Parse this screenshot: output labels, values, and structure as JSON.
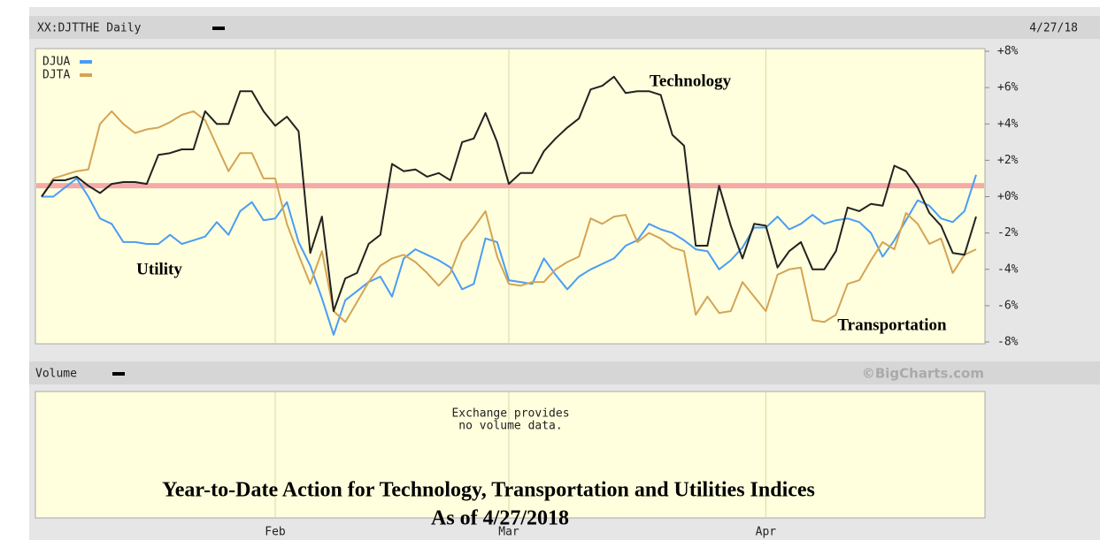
{
  "chart_data": {
    "type": "line",
    "title": "XX:DJTTHE Daily",
    "date_label": "4/27/18",
    "categories": [
      null,
      null,
      null,
      null,
      null,
      null,
      null,
      null,
      null,
      null,
      null,
      null,
      null,
      null,
      null,
      null,
      null,
      null,
      null,
      null,
      "Feb",
      null,
      null,
      null,
      null,
      null,
      null,
      null,
      null,
      null,
      null,
      null,
      null,
      null,
      null,
      null,
      null,
      null,
      null,
      null,
      "Mar",
      null,
      null,
      null,
      null,
      null,
      null,
      null,
      null,
      null,
      null,
      null,
      null,
      null,
      null,
      null,
      null,
      null,
      null,
      null,
      null,
      null,
      "Apr",
      null,
      null,
      null,
      null,
      null,
      null,
      null,
      null,
      null,
      null,
      null,
      null,
      null,
      null,
      null,
      null,
      null,
      null
    ],
    "series": [
      {
        "name": "XX:DJTTHE Daily",
        "color": "#222222",
        "values": [
          0,
          0.9,
          0.9,
          1.1,
          0.6,
          0.2,
          0.7,
          0.8,
          0.8,
          0.7,
          2.3,
          2.4,
          2.6,
          2.6,
          4.7,
          4.0,
          4.0,
          5.8,
          5.8,
          4.7,
          3.9,
          4.4,
          3.6,
          -3.1,
          -1.1,
          -6.3,
          -4.5,
          -4.2,
          -2.6,
          -2.1,
          1.8,
          1.4,
          1.5,
          1.1,
          1.3,
          0.9,
          3.0,
          3.2,
          4.6,
          3.0,
          0.7,
          1.3,
          1.3,
          2.5,
          3.2,
          3.8,
          4.3,
          5.9,
          6.1,
          6.6,
          5.7,
          5.8,
          5.8,
          5.6,
          3.4,
          2.8,
          -2.7,
          -2.7,
          0.6,
          -1.6,
          -3.4,
          -1.5,
          -1.6,
          -3.9,
          -3.0,
          -2.5,
          -4.0,
          -4.0,
          -3.0,
          -0.6,
          -0.8,
          -0.4,
          -0.5,
          1.7,
          1.4,
          0.5,
          -0.9,
          -1.6,
          -3.1,
          -3.2,
          -1.1
        ]
      },
      {
        "name": "DJUA",
        "color": "#4a9cf5",
        "values": [
          0,
          0,
          0.5,
          1.0,
          0,
          -1.2,
          -1.5,
          -2.5,
          -2.5,
          -2.6,
          -2.6,
          -2.1,
          -2.6,
          -2.4,
          -2.2,
          -1.4,
          -2.1,
          -0.8,
          -0.3,
          -1.3,
          -1.2,
          -0.3,
          -2.5,
          -3.8,
          -5.6,
          -7.6,
          -5.7,
          -5.2,
          -4.7,
          -4.4,
          -5.5,
          -3.4,
          -2.9,
          -3.2,
          -3.5,
          -3.9,
          -5.1,
          -4.8,
          -2.3,
          -2.5,
          -4.6,
          -4.7,
          -4.8,
          -3.4,
          -4.3,
          -5.1,
          -4.4,
          -4.0,
          -3.7,
          -3.4,
          -2.7,
          -2.4,
          -1.5,
          -1.8,
          -2.0,
          -2.4,
          -2.9,
          -3.0,
          -4.0,
          -3.5,
          -2.8,
          -1.7,
          -1.7,
          -1.1,
          -1.8,
          -1.5,
          -1.0,
          -1.5,
          -1.3,
          -1.2,
          -1.4,
          -2.0,
          -3.3,
          -2.4,
          -1.3,
          -0.2,
          -0.5,
          -1.2,
          -1.4,
          -0.8,
          1.2
        ]
      },
      {
        "name": "DJTA",
        "color": "#d4a455",
        "values": [
          0,
          1.0,
          1.2,
          1.4,
          1.5,
          4.0,
          4.7,
          4.0,
          3.5,
          3.7,
          3.8,
          4.1,
          4.5,
          4.7,
          4.2,
          2.8,
          1.4,
          2.4,
          2.4,
          1.0,
          1.0,
          -1.5,
          -3.2,
          -4.8,
          -3.0,
          -6.3,
          -6.9,
          -5.8,
          -4.7,
          -3.8,
          -3.4,
          -3.2,
          -3.6,
          -4.2,
          -4.9,
          -4.2,
          -2.5,
          -1.7,
          -0.8,
          -3.3,
          -4.8,
          -4.9,
          -4.7,
          -4.7,
          -4.0,
          -3.6,
          -3.3,
          -1.2,
          -1.5,
          -1.1,
          -1.0,
          -2.5,
          -2.0,
          -2.3,
          -2.8,
          -3.0,
          -6.5,
          -5.5,
          -6.4,
          -6.3,
          -4.7,
          -5.5,
          -6.3,
          -4.3,
          -4.0,
          -3.9,
          -6.8,
          -6.9,
          -6.5,
          -4.8,
          -4.6,
          -3.5,
          -2.5,
          -2.9,
          -0.9,
          -1.5,
          -2.6,
          -2.3,
          -4.2,
          -3.2,
          -2.9
        ]
      }
    ],
    "ylim": [
      -8,
      8
    ],
    "yticks": [
      {
        "value": 8,
        "label": "+8%"
      },
      {
        "value": 6,
        "label": "+6%"
      },
      {
        "value": 4,
        "label": "+4%"
      },
      {
        "value": 2,
        "label": "+2%"
      },
      {
        "value": 0,
        "label": "+0%"
      },
      {
        "value": -2,
        "label": "-2%"
      },
      {
        "value": -4,
        "label": "-4%"
      },
      {
        "value": -6,
        "label": "-6%"
      },
      {
        "value": -8,
        "label": "-8%"
      }
    ],
    "grid": true,
    "reference_line": {
      "value": 0.6,
      "color": "#f6a9a9"
    },
    "annotations": [
      "Technology",
      "Utility",
      "Transportation"
    ],
    "volume_label": "Volume",
    "credit": "©BigCharts.com",
    "volume_note": [
      "Exchange provides",
      "no volume data."
    ],
    "caption": [
      "Year-to-Date Action for Technology, Transportation and Utilities Indices",
      "As of 4/27/2018"
    ]
  }
}
